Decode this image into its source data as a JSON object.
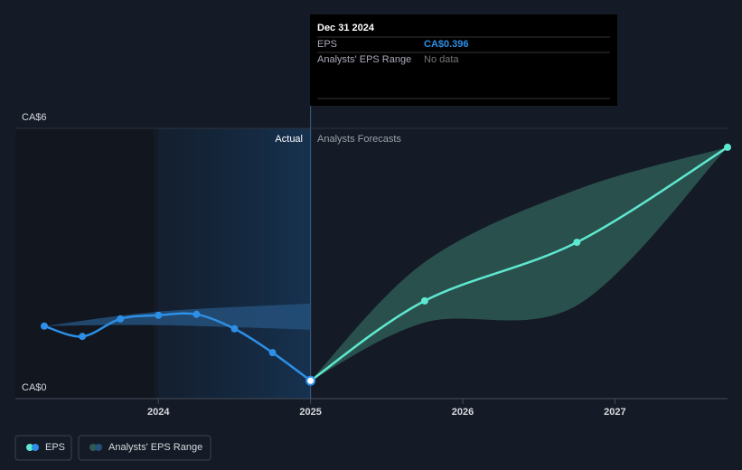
{
  "chart_data": {
    "type": "line",
    "xlim": [
      2023.06,
      2027.74
    ],
    "xticks": [
      2024,
      2025,
      2026,
      2027
    ],
    "ylim": [
      0,
      6
    ],
    "yticks": [
      {
        "value": 0,
        "label": "CA$0"
      },
      {
        "value": 6,
        "label": "CA$6"
      }
    ],
    "divider_x": 2025.0,
    "actual_label": "Actual",
    "forecast_label": "Analysts Forecasts",
    "series": [
      {
        "name": "EPS",
        "color": "#2d8fe6",
        "forecast_color": "#5ee8cf",
        "x": [
          2023.25,
          2023.5,
          2023.75,
          2024.0,
          2024.25,
          2024.5,
          2024.75,
          2025.0,
          2025.75,
          2026.75,
          2027.74
        ],
        "values": [
          1.61,
          1.38,
          1.77,
          1.85,
          1.87,
          1.55,
          1.02,
          0.396,
          2.17,
          3.47,
          5.58
        ]
      }
    ],
    "range": {
      "name": "Analysts' EPS Range",
      "past": {
        "color": "#24507a",
        "x": [
          2023.25,
          2024.0,
          2025.0
        ],
        "low": [
          1.61,
          1.63,
          1.53
        ],
        "high": [
          1.61,
          1.93,
          2.11
        ]
      },
      "forecast": {
        "color": "#2e5955",
        "x": [
          2025.0,
          2025.75,
          2026.75,
          2027.74
        ],
        "low": [
          0.396,
          1.69,
          2.07,
          5.58
        ],
        "high": [
          0.396,
          3.03,
          4.64,
          5.58
        ]
      }
    },
    "tooltip": {
      "date": "Dec 31 2024",
      "rows": [
        {
          "label": "EPS",
          "value": "CA$0.396"
        },
        {
          "label": "Analysts' EPS Range",
          "value": "No data"
        }
      ]
    }
  }
}
